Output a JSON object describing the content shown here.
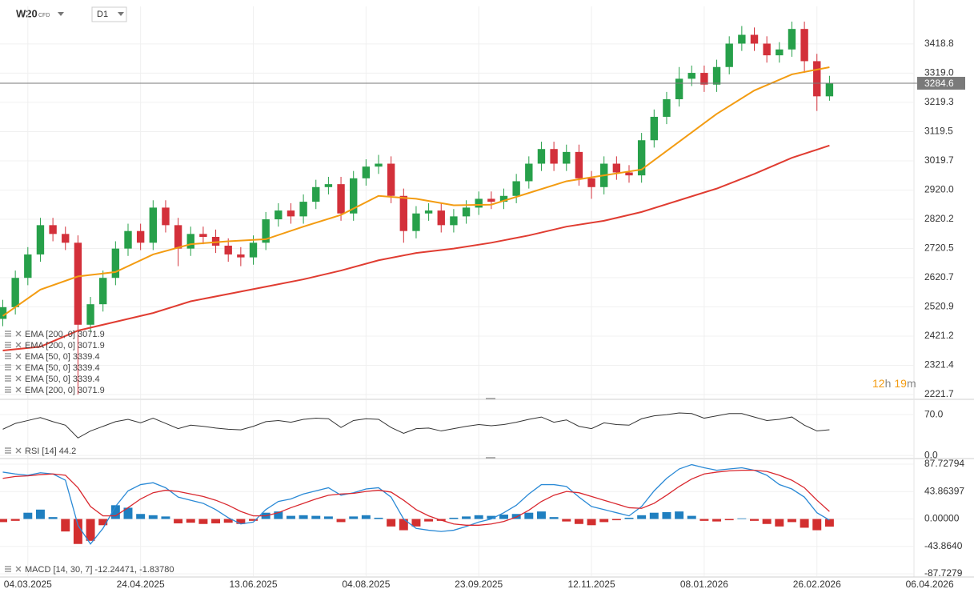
{
  "header": {
    "symbol": "W20",
    "symbol_type": "CFD",
    "timeframe": "D1"
  },
  "countdown": {
    "hours": "12",
    "hours_unit": "h",
    "minutes": "19",
    "minutes_unit": "m"
  },
  "chart_data": [
    {
      "type": "candlestick",
      "x": [
        0,
        1,
        2,
        3,
        4,
        5,
        6,
        7,
        8,
        9,
        10,
        11,
        12,
        13,
        14,
        15,
        16,
        17,
        18,
        19,
        20,
        21,
        22,
        23,
        24,
        25,
        26,
        27,
        28,
        29,
        30,
        31,
        32,
        33,
        34,
        35,
        36,
        37,
        38,
        39,
        40,
        41,
        42,
        43,
        44,
        45,
        46,
        47,
        48,
        49,
        50,
        51,
        52,
        53,
        54,
        55,
        56,
        57,
        58,
        59,
        60,
        61,
        62,
        63,
        64,
        65,
        66
      ],
      "open": [
        2480,
        2520,
        2620,
        2700,
        2800,
        2770,
        2740,
        2460,
        2530,
        2620,
        2720,
        2780,
        2740,
        2860,
        2800,
        2720,
        2770,
        2760,
        2730,
        2700,
        2690,
        2740,
        2820,
        2850,
        2830,
        2880,
        2930,
        2940,
        2840,
        2960,
        3000,
        3010,
        2900,
        2780,
        2840,
        2850,
        2800,
        2830,
        2860,
        2890,
        2880,
        2900,
        2950,
        3010,
        3060,
        3010,
        3050,
        2960,
        2930,
        3010,
        2980,
        2970,
        3090,
        3170,
        3230,
        3300,
        3320,
        3280,
        3340,
        3420,
        3450,
        3420,
        3380,
        3400,
        3470,
        3360,
        3240
      ],
      "high": [
        2545,
        2645,
        2725,
        2825,
        2825,
        2795,
        2765,
        2555,
        2645,
        2745,
        2805,
        2805,
        2885,
        2885,
        2825,
        2795,
        2795,
        2785,
        2755,
        2725,
        2765,
        2845,
        2875,
        2875,
        2905,
        2955,
        2965,
        2965,
        2985,
        3025,
        3040,
        3035,
        2925,
        2865,
        2875,
        2875,
        2855,
        2885,
        2915,
        2915,
        2925,
        2975,
        3035,
        3085,
        3085,
        3075,
        3075,
        2985,
        3035,
        3035,
        3005,
        3115,
        3195,
        3255,
        3340,
        3345,
        3345,
        3365,
        3445,
        3480,
        3475,
        3445,
        3425,
        3495,
        3495,
        3385,
        3310
      ],
      "low": [
        2455,
        2495,
        2595,
        2675,
        2745,
        2715,
        2222,
        2435,
        2505,
        2595,
        2695,
        2715,
        2715,
        2775,
        2660,
        2695,
        2735,
        2705,
        2675,
        2660,
        2665,
        2715,
        2795,
        2805,
        2805,
        2855,
        2905,
        2815,
        2815,
        2935,
        2975,
        2875,
        2740,
        2755,
        2815,
        2775,
        2775,
        2805,
        2835,
        2855,
        2855,
        2875,
        2925,
        2985,
        2985,
        2985,
        2935,
        2890,
        2905,
        2955,
        2945,
        2945,
        3065,
        3145,
        3205,
        3275,
        3255,
        3255,
        3315,
        3395,
        3395,
        3355,
        3355,
        3375,
        3320,
        3190,
        3225
      ],
      "close": [
        2520,
        2620,
        2700,
        2800,
        2770,
        2740,
        2460,
        2530,
        2620,
        2720,
        2780,
        2740,
        2860,
        2800,
        2720,
        2770,
        2760,
        2730,
        2700,
        2690,
        2740,
        2820,
        2850,
        2830,
        2880,
        2930,
        2940,
        2840,
        2960,
        3000,
        3010,
        2900,
        2780,
        2840,
        2850,
        2800,
        2830,
        2860,
        2890,
        2880,
        2900,
        2950,
        3010,
        3060,
        3010,
        3050,
        2960,
        2930,
        3010,
        2980,
        2970,
        3090,
        3170,
        3230,
        3300,
        3320,
        3280,
        3340,
        3420,
        3450,
        3420,
        3380,
        3400,
        3470,
        3360,
        3240,
        3284.6
      ],
      "up_color": "#27a04a",
      "down_color": "#d3303a",
      "price_line_color": "#7a7a7a",
      "series": [
        {
          "color": "#f39c12",
          "x": [
            0,
            3,
            6,
            9,
            12,
            15,
            18,
            21,
            24,
            27,
            30,
            33,
            36,
            39,
            42,
            45,
            48,
            51,
            54,
            57,
            60,
            63,
            66
          ],
          "values": [
            2490,
            2580,
            2625,
            2640,
            2700,
            2735,
            2745,
            2752,
            2795,
            2835,
            2900,
            2890,
            2868,
            2870,
            2910,
            2950,
            2970,
            2990,
            3085,
            3180,
            3260,
            3315,
            3339.4
          ]
        },
        {
          "color": "#e03c31",
          "x": [
            0,
            3,
            6,
            9,
            12,
            15,
            18,
            21,
            24,
            27,
            30,
            33,
            36,
            39,
            42,
            45,
            48,
            51,
            54,
            57,
            60,
            63,
            66
          ],
          "values": [
            2372,
            2385,
            2440,
            2470,
            2500,
            2540,
            2565,
            2590,
            2615,
            2645,
            2680,
            2705,
            2720,
            2740,
            2765,
            2795,
            2815,
            2845,
            2885,
            2925,
            2975,
            3030,
            3071.9
          ]
        }
      ],
      "legend": [
        "EMA [200, 0] 3071.9",
        "EMA [200, 0] 3071.9",
        "EMA [50, 0] 3339.4",
        "EMA [50, 0] 3339.4",
        "EMA [50, 0] 3339.4",
        "EMA [200, 0] 3071.9"
      ],
      "xlim": [
        -0.224,
        77.54
      ],
      "xticks": [
        {
          "value": 2,
          "label": "04.03.2025"
        },
        {
          "value": 11,
          "label": "24.04.2025"
        },
        {
          "value": 20,
          "label": "13.06.2025"
        },
        {
          "value": 29,
          "label": "04.08.2025"
        },
        {
          "value": 38,
          "label": "23.09.2025"
        },
        {
          "value": 47,
          "label": "12.11.2025"
        },
        {
          "value": 56,
          "label": "08.01.2026"
        },
        {
          "value": 65,
          "label": "26.02.2026"
        },
        {
          "value": 74,
          "label": "06.04.2026"
        }
      ],
      "ylim": [
        2208,
        3547
      ],
      "yticks": [
        3418.8,
        {
          "value": 3319,
          "label": "3319.0"
        },
        3219.3,
        3119.5,
        3019.7,
        {
          "value": 2920,
          "label": "2920.0"
        },
        2820.2,
        2720.5,
        2620.7,
        2520.9,
        2421.2,
        2321.4,
        2221.7
      ],
      "grid": true
    },
    {
      "type": "line",
      "label": "RSI [14] 44.2",
      "color": "#333333",
      "values": [
        45,
        55,
        60,
        65,
        58,
        52,
        30,
        42,
        50,
        58,
        62,
        56,
        64,
        55,
        46,
        52,
        50,
        47,
        45,
        44,
        50,
        58,
        60,
        57,
        62,
        64,
        63,
        48,
        60,
        63,
        62,
        48,
        38,
        46,
        47,
        42,
        46,
        50,
        53,
        51,
        53,
        57,
        62,
        66,
        57,
        61,
        50,
        46,
        56,
        53,
        52,
        63,
        68,
        70,
        73,
        72,
        64,
        68,
        72,
        72,
        66,
        60,
        62,
        66,
        52,
        42,
        44.2
      ],
      "ylim": [
        -4,
        95
      ],
      "yticks": [
        {
          "value": 70,
          "label": "70.0"
        },
        {
          "value": 0,
          "label": "0.0"
        }
      ],
      "grid": true
    },
    {
      "type": "macd",
      "label": "MACD [14, 30, 7] -12.24471, -1.83780",
      "histogram": {
        "up_color": "#1f7fc0",
        "down_color": "#d32f2f",
        "values": [
          -5,
          -3,
          10,
          15,
          3,
          -20,
          -40,
          -35,
          -10,
          22,
          18,
          8,
          6,
          4,
          -7,
          -6,
          -8,
          -7,
          -6,
          -8,
          -3,
          10,
          12,
          5,
          6,
          5,
          4,
          -5,
          4,
          6,
          2,
          -12,
          -18,
          -12,
          -4,
          -3,
          2,
          4,
          6,
          5,
          7,
          8,
          10,
          12,
          3,
          -4,
          -8,
          -10,
          -5,
          -2,
          2,
          6,
          10,
          11,
          12,
          5,
          -3,
          -4,
          -2,
          1,
          -3,
          -8,
          -12,
          -5,
          -14,
          -18,
          -12.24471
        ]
      },
      "series": [
        {
          "color": "#2b8ad6",
          "values": [
            75,
            72,
            70,
            74,
            72,
            62,
            -10,
            -40,
            -15,
            20,
            45,
            55,
            58,
            50,
            35,
            30,
            25,
            15,
            2,
            -8,
            -5,
            15,
            28,
            32,
            40,
            45,
            50,
            38,
            42,
            48,
            50,
            35,
            0,
            -15,
            -18,
            -20,
            -18,
            -12,
            -5,
            0,
            10,
            22,
            40,
            55,
            55,
            52,
            35,
            20,
            15,
            10,
            5,
            20,
            45,
            65,
            80,
            87,
            82,
            78,
            80,
            82,
            78,
            70,
            55,
            48,
            35,
            10,
            -1.8378
          ]
        },
        {
          "color": "#d9282f",
          "values": [
            65,
            68,
            69,
            71,
            72,
            70,
            50,
            20,
            5,
            5,
            18,
            32,
            42,
            46,
            44,
            40,
            36,
            30,
            22,
            12,
            5,
            5,
            10,
            18,
            25,
            32,
            38,
            40,
            41,
            44,
            46,
            43,
            30,
            15,
            5,
            -2,
            -8,
            -10,
            -10,
            -8,
            -4,
            3,
            14,
            28,
            38,
            44,
            42,
            36,
            30,
            24,
            18,
            17,
            25,
            38,
            52,
            64,
            72,
            75,
            77,
            78,
            78,
            76,
            70,
            62,
            50,
            30,
            12
          ]
        }
      ],
      "ylim": [
        -91.57,
        95.41
      ],
      "yticks": [
        {
          "value": 87.72794,
          "label": "87.72794"
        },
        {
          "value": 43.86397,
          "label": "43.86397"
        },
        {
          "value": 0,
          "label": "0.00000"
        },
        {
          "value": -43.864,
          "label": "-43.8640"
        },
        {
          "value": -87.7279,
          "label": "-87.7279"
        }
      ],
      "grid": true
    }
  ]
}
